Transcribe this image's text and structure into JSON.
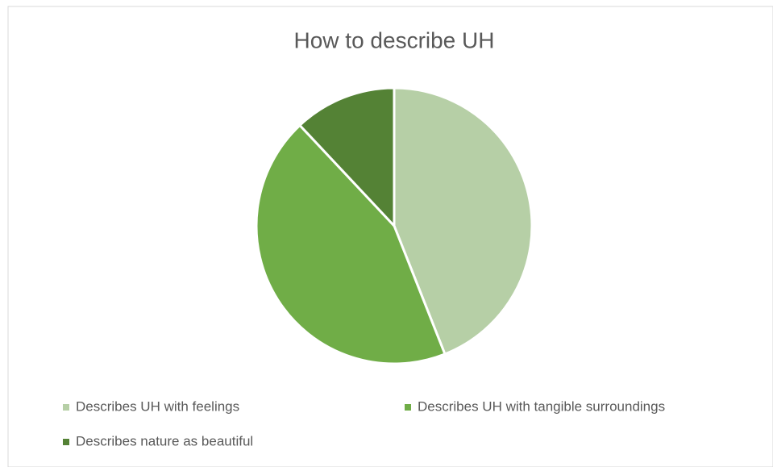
{
  "chart_data": {
    "type": "pie",
    "title": "How to describe UH",
    "categories": [
      "Describes UH with feelings",
      "Describes UH with tangible surroundings",
      "Describes nature as beautiful"
    ],
    "values": [
      44,
      44,
      12
    ],
    "colors": [
      "#b6cfa6",
      "#70ad47",
      "#548235"
    ],
    "legend": "bottom"
  }
}
